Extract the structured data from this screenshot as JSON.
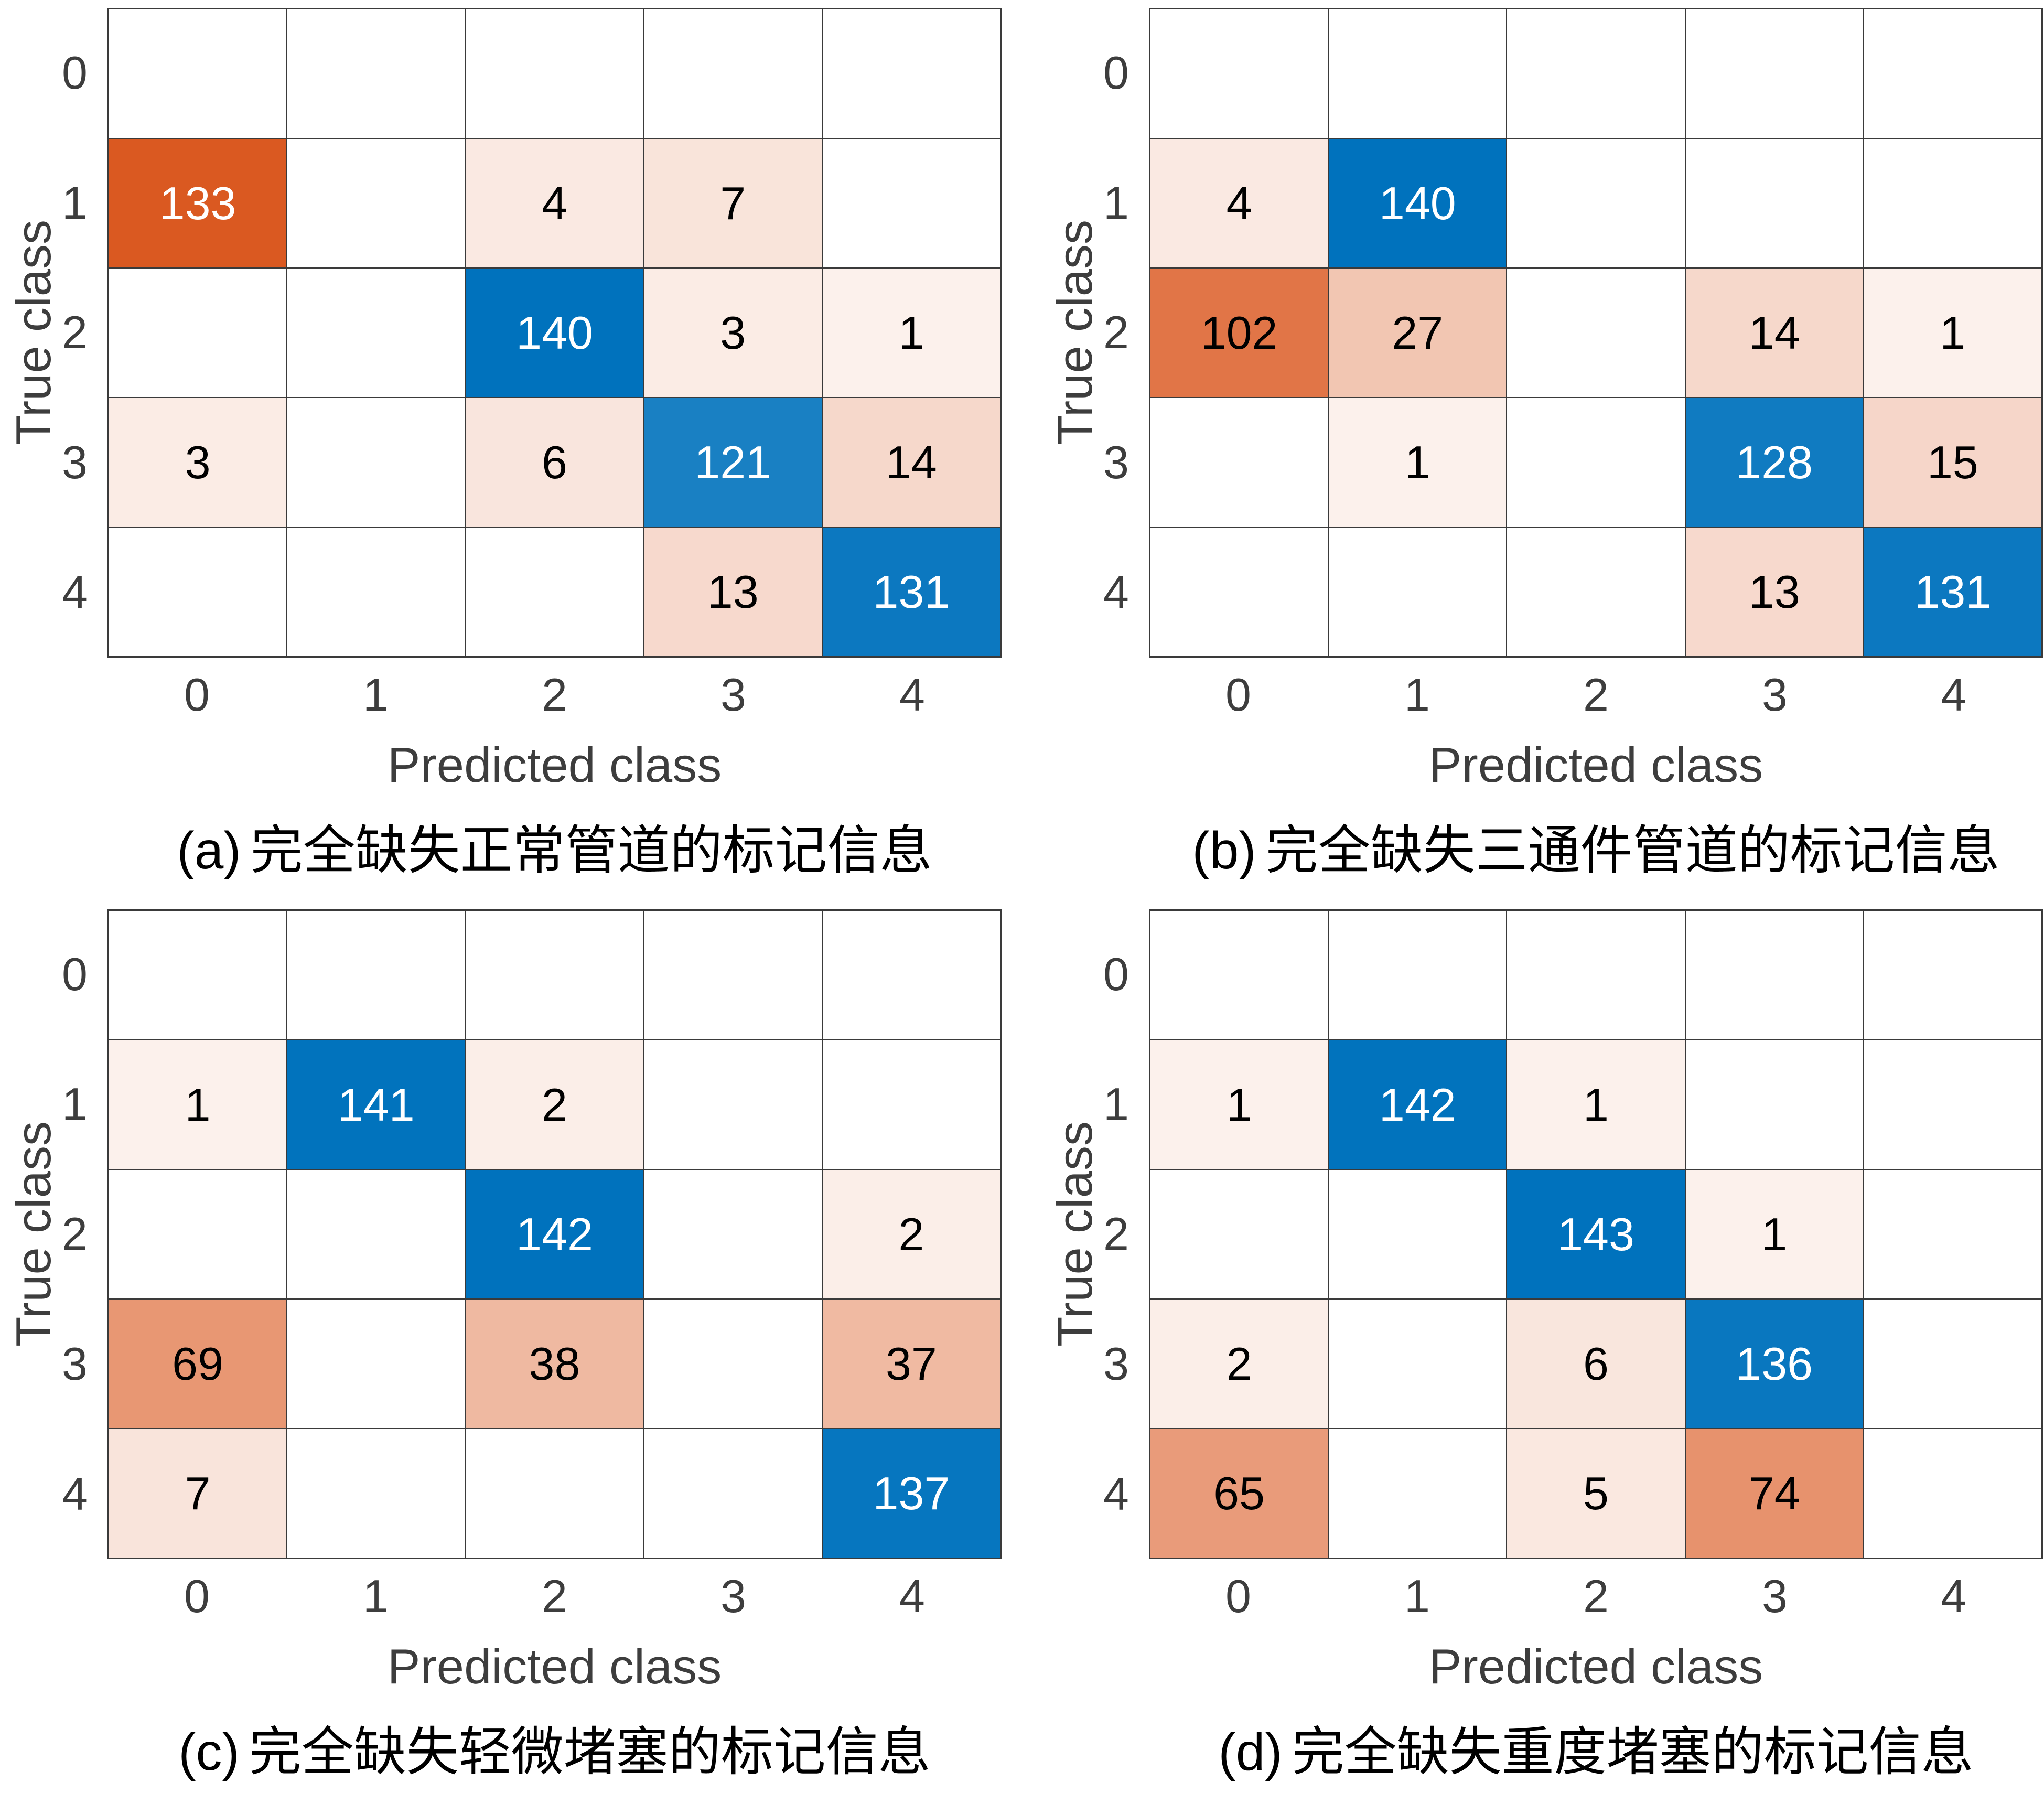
{
  "colors": {
    "diagonal": "#0072bd",
    "off_diagonal": "#d95319",
    "grid_line": "#3a3a3a",
    "axis_text": "#3d3d3d",
    "cell_text_light": "#ffffff",
    "cell_text_dark": "#000000",
    "background": "#ffffff"
  },
  "chart_data": [
    {
      "type": "heatmap",
      "subtype": "confusion_matrix",
      "caption_label": "(a)",
      "caption_text": "完全缺失正常管道的标记信息",
      "xlabel": "Predicted class",
      "ylabel": "True class",
      "x_ticks": [
        "0",
        "1",
        "2",
        "3",
        "4"
      ],
      "y_ticks": [
        "0",
        "1",
        "2",
        "3",
        "4"
      ],
      "legend_position": "none",
      "grid": true,
      "matrix": [
        [
          0,
          0,
          0,
          0,
          0
        ],
        [
          133,
          0,
          4,
          7,
          0
        ],
        [
          0,
          0,
          140,
          3,
          1
        ],
        [
          3,
          0,
          6,
          121,
          14
        ],
        [
          0,
          0,
          0,
          13,
          131
        ]
      ]
    },
    {
      "type": "heatmap",
      "subtype": "confusion_matrix",
      "caption_label": "(b)",
      "caption_text": "完全缺失三通件管道的标记信息",
      "xlabel": "Predicted class",
      "ylabel": "True class",
      "x_ticks": [
        "0",
        "1",
        "2",
        "3",
        "4"
      ],
      "y_ticks": [
        "0",
        "1",
        "2",
        "3",
        "4"
      ],
      "legend_position": "none",
      "grid": true,
      "matrix": [
        [
          0,
          0,
          0,
          0,
          0
        ],
        [
          4,
          140,
          0,
          0,
          0
        ],
        [
          102,
          27,
          0,
          14,
          1
        ],
        [
          0,
          1,
          0,
          128,
          15
        ],
        [
          0,
          0,
          0,
          13,
          131
        ]
      ]
    },
    {
      "type": "heatmap",
      "subtype": "confusion_matrix",
      "caption_label": "(c)",
      "caption_text": "完全缺失轻微堵塞的标记信息",
      "xlabel": "Predicted class",
      "ylabel": "True class",
      "x_ticks": [
        "0",
        "1",
        "2",
        "3",
        "4"
      ],
      "y_ticks": [
        "0",
        "1",
        "2",
        "3",
        "4"
      ],
      "legend_position": "none",
      "grid": true,
      "matrix": [
        [
          0,
          0,
          0,
          0,
          0
        ],
        [
          1,
          141,
          2,
          0,
          0
        ],
        [
          0,
          0,
          142,
          0,
          2
        ],
        [
          69,
          0,
          38,
          0,
          37
        ],
        [
          7,
          0,
          0,
          0,
          137
        ]
      ]
    },
    {
      "type": "heatmap",
      "subtype": "confusion_matrix",
      "caption_label": "(d)",
      "caption_text": "完全缺失重度堵塞的标记信息",
      "xlabel": "Predicted class",
      "ylabel": "True class",
      "x_ticks": [
        "0",
        "1",
        "2",
        "3",
        "4"
      ],
      "y_ticks": [
        "0",
        "1",
        "2",
        "3",
        "4"
      ],
      "legend_position": "none",
      "grid": true,
      "matrix": [
        [
          0,
          0,
          0,
          0,
          0
        ],
        [
          1,
          142,
          1,
          0,
          0
        ],
        [
          0,
          0,
          143,
          1,
          0
        ],
        [
          2,
          0,
          6,
          136,
          0
        ],
        [
          65,
          0,
          5,
          74,
          0
        ]
      ]
    }
  ]
}
